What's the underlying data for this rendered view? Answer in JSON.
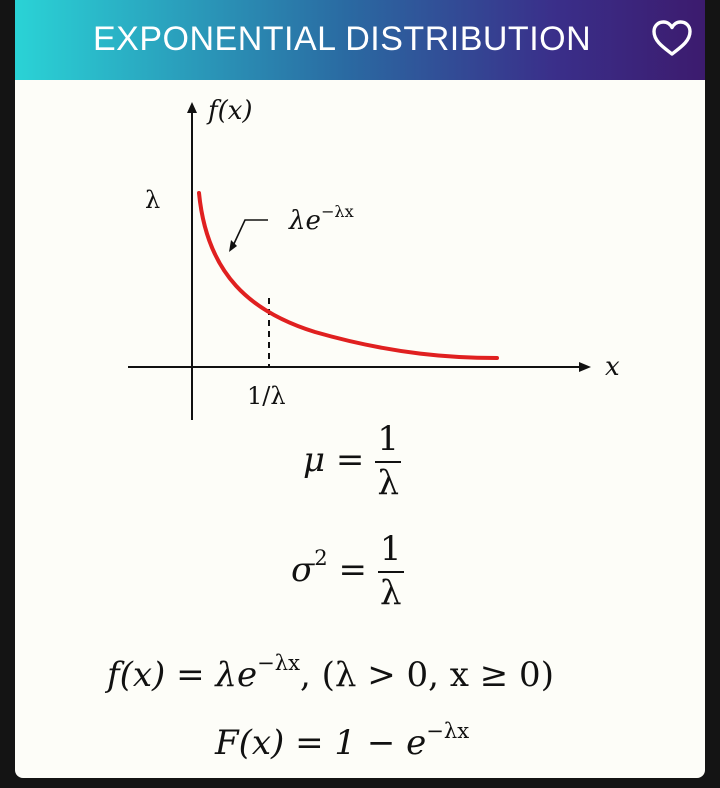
{
  "header": {
    "title": "EXPONENTIAL DISTRIBUTION",
    "favorite_icon": "heart-icon",
    "gradient": [
      "#2ad3d6",
      "#2a6aa2",
      "#3c1b6e"
    ]
  },
  "graph": {
    "y_axis_label": "f(x)",
    "x_axis_label": "x",
    "y_tick_label": "λ",
    "x_tick_label": "1/λ",
    "curve_label": "λe",
    "curve_label_exp": "−λx",
    "curve_color": "#e02020"
  },
  "formulas": {
    "mean": {
      "lhs": "μ =",
      "num": "1",
      "den": "λ"
    },
    "variance": {
      "lhs": "σ",
      "lhs_exp": "2",
      "eq": " =",
      "num": "1",
      "den": "λ"
    },
    "pdf": {
      "lhs": "f(x) = ",
      "base": "λe",
      "exp": "−λx",
      "rest": ", (λ > 0, x ≥ 0)"
    },
    "cdf": {
      "lhs": "F(x) = 1 − e",
      "exp": "−λx"
    }
  }
}
